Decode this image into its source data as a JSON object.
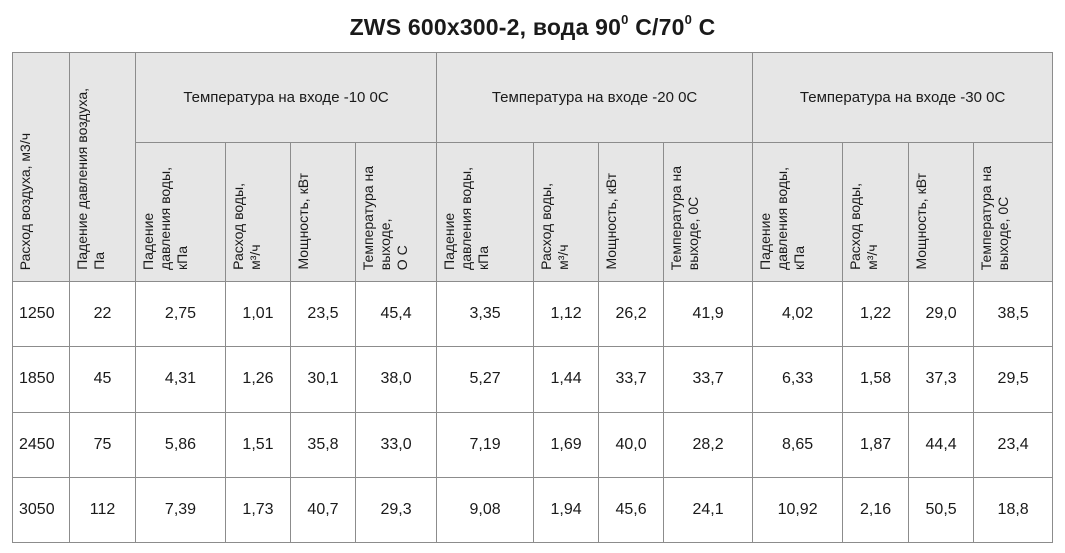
{
  "title": {
    "main": "ZWS 600x300-2, вода 90",
    "sup1": "0",
    "mid": " C/70",
    "sup2": "0",
    "end": " C"
  },
  "header": {
    "air_flow": "Расход воздуха, м3/ч",
    "air_pressure_drop": "Падение давления воздуха,\nПа",
    "groups": [
      "Температура на входе -10 0С",
      "Температура на входе -20 0С",
      "Температура на входе -30 0С"
    ],
    "sub": {
      "water_pressure_drop": "Падение\nдавления воды,\nкПа",
      "water_flow": "Расход воды,\nм³/ч",
      "power": "Мощность, кВт",
      "outlet_temp_1": "Температура на\nвыходе,\nО С",
      "outlet_temp_2": "Температура на\nвыходе, 0С",
      "outlet_temp_3": "Температура на\nвыходе, 0С"
    }
  },
  "rows": [
    {
      "air_flow": "1250",
      "air_dp": "22",
      "g1": [
        "2,75",
        "1,01",
        "23,5",
        "45,4"
      ],
      "g2": [
        "3,35",
        "1,12",
        "26,2",
        "41,9"
      ],
      "g3": [
        "4,02",
        "1,22",
        "29,0",
        "38,5"
      ]
    },
    {
      "air_flow": "1850",
      "air_dp": "45",
      "g1": [
        "4,31",
        "1,26",
        "30,1",
        "38,0"
      ],
      "g2": [
        "5,27",
        "1,44",
        "33,7",
        "33,7"
      ],
      "g3": [
        "6,33",
        "1,58",
        "37,3",
        "29,5"
      ]
    },
    {
      "air_flow": "2450",
      "air_dp": "75",
      "g1": [
        "5,86",
        "1,51",
        "35,8",
        "33,0"
      ],
      "g2": [
        "7,19",
        "1,69",
        "40,0",
        "28,2"
      ],
      "g3": [
        "8,65",
        "1,87",
        "44,4",
        "23,4"
      ]
    },
    {
      "air_flow": "3050",
      "air_dp": "112",
      "g1": [
        "7,39",
        "1,73",
        "40,7",
        "29,3"
      ],
      "g2": [
        "9,08",
        "1,94",
        "45,6",
        "24,1"
      ],
      "g3": [
        "10,92",
        "2,16",
        "50,5",
        "18,8"
      ]
    }
  ]
}
